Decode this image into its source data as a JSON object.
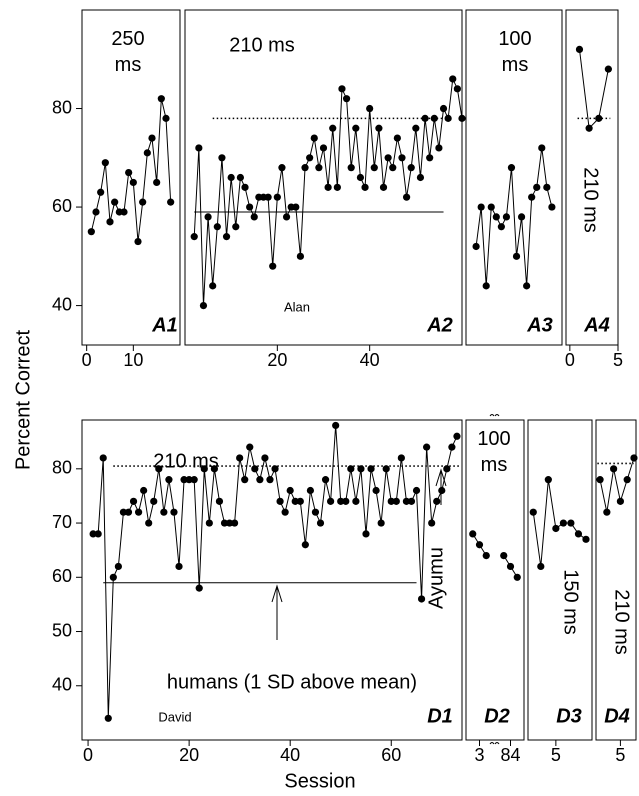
{
  "y_label": "Percent Correct",
  "x_label": "Session",
  "chart_data": [
    {
      "type": "line",
      "panel": "A1",
      "annotations": [
        "250 ms"
      ],
      "xlim": [
        -1,
        20
      ],
      "xticks": [
        0,
        10
      ],
      "ylim": [
        32,
        100
      ],
      "yticks": [
        40,
        60,
        80
      ],
      "x": [
        1,
        2,
        3,
        4,
        5,
        6,
        7,
        8,
        9,
        10,
        11,
        12,
        13,
        14,
        15,
        16,
        17,
        18
      ],
      "values": [
        55,
        59,
        63,
        69,
        57,
        61,
        59,
        59,
        67,
        65,
        53,
        61,
        71,
        74,
        65,
        82,
        78,
        61
      ]
    },
    {
      "type": "line",
      "panel": "A2",
      "annotations": [
        "210 ms",
        "Alan"
      ],
      "xlim": [
        0,
        60
      ],
      "xticks": [
        20,
        40
      ],
      "ylim": [
        32,
        100
      ],
      "reference_lines": [
        {
          "value": 59,
          "style": "solid",
          "from": 2,
          "to": 56
        },
        {
          "value": 78,
          "style": "dotted",
          "from": 6,
          "to": 56
        }
      ],
      "x": [
        2,
        3,
        4,
        5,
        6,
        7,
        8,
        9,
        10,
        11,
        12,
        13,
        14,
        15,
        16,
        17,
        18,
        19,
        20,
        21,
        22,
        23,
        24,
        25,
        26,
        27,
        28,
        29,
        30,
        31,
        32,
        33,
        34,
        35,
        36,
        37,
        38,
        39,
        40,
        41,
        42,
        43,
        44,
        45,
        46,
        47,
        48,
        49,
        50,
        51,
        52,
        53,
        54,
        55,
        56,
        57,
        58,
        59,
        60
      ],
      "values": [
        54,
        72,
        40,
        58,
        44,
        56,
        70,
        54,
        66,
        56,
        66,
        64,
        60,
        58,
        62,
        62,
        62,
        48,
        62,
        68,
        58,
        60,
        60,
        50,
        68,
        70,
        74,
        68,
        72,
        64,
        76,
        64,
        84,
        82,
        68,
        76,
        66,
        64,
        80,
        68,
        76,
        64,
        70,
        68,
        74,
        70,
        62,
        68,
        76,
        66,
        78,
        70,
        78,
        72,
        80,
        78,
        86,
        84,
        78
      ]
    },
    {
      "type": "line",
      "panel": "A3",
      "annotations": [
        "100 ms"
      ],
      "xlim": [
        -1,
        18
      ],
      "ylim": [
        32,
        100
      ],
      "x": [
        1,
        2,
        3,
        4,
        5,
        6,
        7,
        8,
        9,
        10,
        11,
        12,
        13,
        14,
        15,
        16
      ],
      "values": [
        52,
        60,
        44,
        60,
        58,
        56,
        58,
        68,
        50,
        58,
        44,
        62,
        64,
        72,
        64,
        60
      ]
    },
    {
      "type": "line",
      "panel": "A4",
      "annotations": [
        "210 ms"
      ],
      "xlim": [
        -0.4,
        5
      ],
      "xticks": [
        0,
        5
      ],
      "ylim": [
        32,
        100
      ],
      "reference_lines": [
        {
          "value": 78,
          "style": "dotted",
          "from": 0.8,
          "to": 4.2
        }
      ],
      "x": [
        1,
        2,
        3,
        4
      ],
      "values": [
        92,
        76,
        78,
        88
      ]
    },
    {
      "type": "line",
      "panel": "D1",
      "annotations": [
        "210 ms",
        "humans (1 SD above mean)",
        "David",
        "Ayumu"
      ],
      "xlim": [
        -1.2,
        74
      ],
      "xticks": [
        0,
        20,
        40,
        60
      ],
      "ylim": [
        30,
        89
      ],
      "yticks": [
        40,
        50,
        60,
        70,
        80
      ],
      "reference_lines": [
        {
          "value": 59,
          "style": "solid",
          "from": 3,
          "to": 65
        },
        {
          "value": 80.5,
          "style": "dotted",
          "from": 5,
          "to": 73.5
        }
      ],
      "x": [
        1,
        2,
        3,
        4,
        5,
        6,
        7,
        8,
        9,
        10,
        11,
        12,
        13,
        14,
        15,
        16,
        17,
        18,
        19,
        20,
        21,
        22,
        23,
        24,
        25,
        26,
        27,
        28,
        29,
        30,
        31,
        32,
        33,
        34,
        35,
        36,
        37,
        38,
        39,
        40,
        41,
        42,
        43,
        44,
        45,
        46,
        47,
        48,
        49,
        50,
        51,
        52,
        53,
        54,
        55,
        56,
        57,
        58,
        59,
        60,
        61,
        62,
        63,
        64,
        65,
        66,
        67,
        68,
        69,
        70,
        71,
        72,
        73
      ],
      "values": [
        68,
        68,
        82,
        34,
        60,
        62,
        72,
        72,
        74,
        72,
        76,
        70,
        74,
        80,
        72,
        78,
        72,
        62,
        78,
        78,
        78,
        58,
        80,
        70,
        80,
        74,
        70,
        70,
        70,
        82,
        78,
        84,
        80,
        78,
        82,
        78,
        80,
        74,
        72,
        76,
        74,
        74,
        66,
        76,
        72,
        70,
        78,
        74,
        88,
        74,
        74,
        80,
        74,
        80,
        68,
        80,
        76,
        70,
        80,
        74,
        74,
        82,
        74,
        74,
        76,
        56,
        84,
        70,
        74,
        76,
        80,
        84,
        86
      ]
    },
    {
      "type": "line",
      "panel": "D2",
      "annotations": [
        "100 ms"
      ],
      "xlim": [
        1,
        86
      ],
      "xbreak": [
        5,
        82
      ],
      "xticks": [
        3,
        84
      ],
      "ylim": [
        30,
        89
      ],
      "x": [
        2,
        3,
        4,
        83,
        84,
        85
      ],
      "values": [
        68,
        66,
        64,
        64,
        62,
        60
      ]
    },
    {
      "type": "line",
      "panel": "D3",
      "annotations": [
        "150 ms"
      ],
      "xlim": [
        1.3,
        9.8
      ],
      "xticks": [
        5
      ],
      "ylim": [
        30,
        89
      ],
      "x": [
        2,
        3,
        4,
        5,
        6,
        7,
        8,
        9
      ],
      "values": [
        72,
        62,
        78,
        69,
        70,
        70,
        68,
        67
      ]
    },
    {
      "type": "line",
      "panel": "D4",
      "annotations": [
        "210 ms"
      ],
      "xlim": [
        1.4,
        7.3
      ],
      "xticks": [
        5
      ],
      "ylim": [
        30,
        89
      ],
      "reference_lines": [
        {
          "value": 81,
          "style": "dotted",
          "from": 1.6,
          "to": 7
        }
      ],
      "x": [
        2,
        3,
        4,
        5,
        6,
        7
      ],
      "values": [
        78,
        72,
        80,
        74,
        78,
        82
      ]
    }
  ]
}
